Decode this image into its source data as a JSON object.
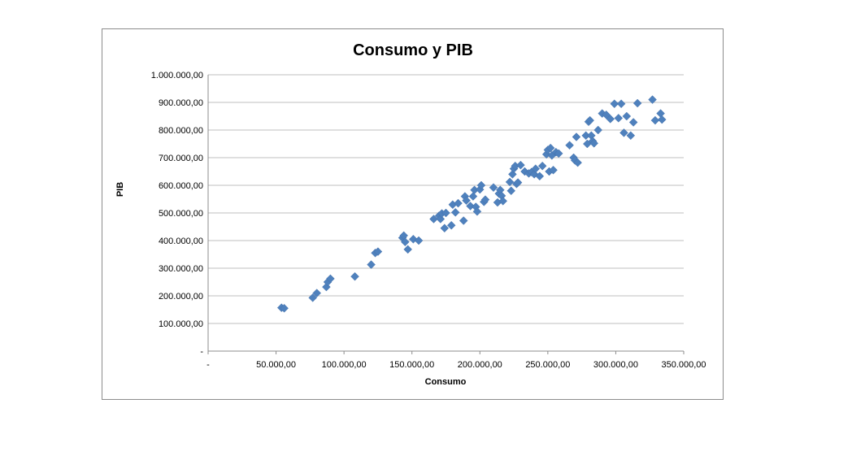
{
  "chart_data": {
    "type": "scatter",
    "title": "Consumo y PIB",
    "xlabel": "Consumo",
    "ylabel": "PIB",
    "xlim": [
      0,
      350000
    ],
    "ylim": [
      0,
      1000000
    ],
    "x_ticks": [
      0,
      50000,
      100000,
      150000,
      200000,
      250000,
      300000,
      350000
    ],
    "x_tick_labels": [
      "-",
      "50.000,00",
      "100.000,00",
      "150.000,00",
      "200.000,00",
      "250.000,00",
      "300.000,00",
      "350.000,00"
    ],
    "y_ticks": [
      0,
      100000,
      200000,
      300000,
      400000,
      500000,
      600000,
      700000,
      800000,
      900000,
      1000000
    ],
    "y_tick_labels": [
      "-",
      "100.000,00",
      "200.000,00",
      "300.000,00",
      "400.000,00",
      "500.000,00",
      "600.000,00",
      "700.000,00",
      "800.000,00",
      "900.000,00",
      "1.000.000,00"
    ],
    "grid": "horizontal",
    "legend": "none",
    "marker": "diamond",
    "color": "#4f81bd",
    "points": [
      [
        54000,
        157000
      ],
      [
        56000,
        155000
      ],
      [
        77000,
        193000
      ],
      [
        80000,
        210000
      ],
      [
        87000,
        232000
      ],
      [
        88000,
        250000
      ],
      [
        90000,
        262000
      ],
      [
        108000,
        270000
      ],
      [
        120000,
        313000
      ],
      [
        123000,
        355000
      ],
      [
        125000,
        360000
      ],
      [
        143000,
        410000
      ],
      [
        144000,
        418000
      ],
      [
        145000,
        395000
      ],
      [
        147000,
        368000
      ],
      [
        151000,
        405000
      ],
      [
        155000,
        400000
      ],
      [
        166000,
        478000
      ],
      [
        170000,
        490000
      ],
      [
        171000,
        478000
      ],
      [
        172000,
        498000
      ],
      [
        174000,
        445000
      ],
      [
        175000,
        500000
      ],
      [
        179000,
        455000
      ],
      [
        180000,
        530000
      ],
      [
        182000,
        502000
      ],
      [
        184000,
        535000
      ],
      [
        188000,
        472000
      ],
      [
        189000,
        560000
      ],
      [
        190000,
        545000
      ],
      [
        193000,
        525000
      ],
      [
        195000,
        560000
      ],
      [
        196000,
        583000
      ],
      [
        197000,
        522000
      ],
      [
        198000,
        505000
      ],
      [
        200000,
        585000
      ],
      [
        201000,
        600000
      ],
      [
        203000,
        540000
      ],
      [
        204000,
        548000
      ],
      [
        210000,
        592000
      ],
      [
        213000,
        538000
      ],
      [
        214000,
        570000
      ],
      [
        215000,
        583000
      ],
      [
        216000,
        562000
      ],
      [
        217000,
        543000
      ],
      [
        222000,
        612000
      ],
      [
        223000,
        580000
      ],
      [
        224000,
        640000
      ],
      [
        225000,
        660000
      ],
      [
        226000,
        670000
      ],
      [
        227000,
        605000
      ],
      [
        228000,
        610000
      ],
      [
        230000,
        673000
      ],
      [
        233000,
        650000
      ],
      [
        236000,
        643000
      ],
      [
        238000,
        648000
      ],
      [
        240000,
        640000
      ],
      [
        241000,
        660000
      ],
      [
        244000,
        633000
      ],
      [
        246000,
        670000
      ],
      [
        249000,
        712000
      ],
      [
        250000,
        728000
      ],
      [
        251000,
        650000
      ],
      [
        252000,
        735000
      ],
      [
        253000,
        708000
      ],
      [
        254000,
        655000
      ],
      [
        256000,
        720000
      ],
      [
        258000,
        715000
      ],
      [
        266000,
        745000
      ],
      [
        269000,
        700000
      ],
      [
        270000,
        690000
      ],
      [
        271000,
        775000
      ],
      [
        272000,
        682000
      ],
      [
        278000,
        780000
      ],
      [
        279000,
        750000
      ],
      [
        280000,
        830000
      ],
      [
        281000,
        835000
      ],
      [
        282000,
        780000
      ],
      [
        283000,
        760000
      ],
      [
        284000,
        752000
      ],
      [
        287000,
        800000
      ],
      [
        290000,
        860000
      ],
      [
        293000,
        855000
      ],
      [
        296000,
        840000
      ],
      [
        299000,
        895000
      ],
      [
        302000,
        843000
      ],
      [
        304000,
        895000
      ],
      [
        306000,
        790000
      ],
      [
        308000,
        850000
      ],
      [
        311000,
        780000
      ],
      [
        313000,
        828000
      ],
      [
        316000,
        897000
      ],
      [
        327000,
        910000
      ],
      [
        329000,
        835000
      ],
      [
        333000,
        860000
      ],
      [
        334000,
        838000
      ]
    ]
  }
}
